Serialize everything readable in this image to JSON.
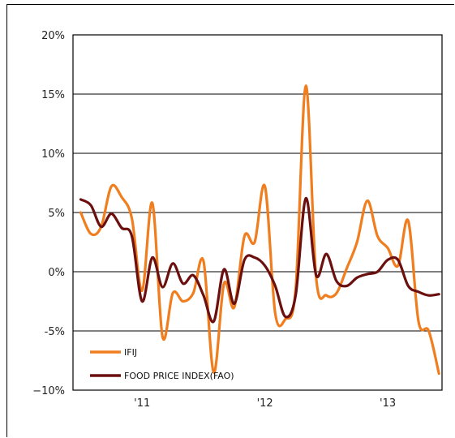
{
  "chart_data": {
    "type": "line",
    "title": "",
    "xlabel": "",
    "ylabel": "",
    "ylim": [
      -0.1,
      0.2
    ],
    "yticks": [
      {
        "value": 0.2,
        "label": "20%"
      },
      {
        "value": 0.15,
        "label": "15%"
      },
      {
        "value": 0.1,
        "label": "10%"
      },
      {
        "value": 0.05,
        "label": "5%"
      },
      {
        "value": 0.0,
        "label": "0%"
      },
      {
        "value": -0.05,
        "label": "-5%"
      },
      {
        "value": -0.1,
        "label": "−10%"
      }
    ],
    "xlim": [
      "2010-09",
      "2013-07"
    ],
    "xticks": [
      {
        "value": "2011-03",
        "label": "'11"
      },
      {
        "value": "2012-03",
        "label": "'12"
      },
      {
        "value": "2013-03",
        "label": "'13"
      }
    ],
    "grid": true,
    "legend": "bottom-left",
    "series": [
      {
        "name": "IFIJ",
        "color": "#f07d1e",
        "points": [
          {
            "x": "2010-09",
            "y": 0.05
          },
          {
            "x": "2010-10",
            "y": 0.032
          },
          {
            "x": "2010-11",
            "y": 0.038
          },
          {
            "x": "2010-12",
            "y": 0.072
          },
          {
            "x": "2011-01",
            "y": 0.063
          },
          {
            "x": "2011-02",
            "y": 0.045
          },
          {
            "x": "2011-03",
            "y": -0.016
          },
          {
            "x": "2011-04",
            "y": 0.058
          },
          {
            "x": "2011-05",
            "y": -0.055
          },
          {
            "x": "2011-06",
            "y": -0.018
          },
          {
            "x": "2011-07",
            "y": -0.025
          },
          {
            "x": "2011-08",
            "y": -0.018
          },
          {
            "x": "2011-09",
            "y": 0.009
          },
          {
            "x": "2011-10",
            "y": -0.085
          },
          {
            "x": "2011-11",
            "y": -0.01
          },
          {
            "x": "2011-12",
            "y": -0.03
          },
          {
            "x": "2012-01",
            "y": 0.03
          },
          {
            "x": "2012-02",
            "y": 0.025
          },
          {
            "x": "2012-03",
            "y": 0.072
          },
          {
            "x": "2012-04",
            "y": -0.035
          },
          {
            "x": "2012-05",
            "y": -0.04
          },
          {
            "x": "2012-06",
            "y": -0.015
          },
          {
            "x": "2012-07",
            "y": 0.157
          },
          {
            "x": "2012-08",
            "y": -0.005
          },
          {
            "x": "2012-09",
            "y": -0.02
          },
          {
            "x": "2012-10",
            "y": -0.018
          },
          {
            "x": "2012-11",
            "y": 0.003
          },
          {
            "x": "2012-12",
            "y": 0.025
          },
          {
            "x": "2013-01",
            "y": 0.06
          },
          {
            "x": "2013-02",
            "y": 0.03
          },
          {
            "x": "2013-03",
            "y": 0.02
          },
          {
            "x": "2013-04",
            "y": 0.005
          },
          {
            "x": "2013-05",
            "y": 0.043
          },
          {
            "x": "2013-06",
            "y": -0.042
          },
          {
            "x": "2013-07",
            "y": -0.05
          },
          {
            "x": "2013-08",
            "y": -0.086
          }
        ]
      },
      {
        "name": "FOOD PRICE INDEX(FAO)",
        "color": "#6b0f0f",
        "points": [
          {
            "x": "2010-09",
            "y": 0.061
          },
          {
            "x": "2010-10",
            "y": 0.056
          },
          {
            "x": "2010-11",
            "y": 0.038
          },
          {
            "x": "2010-12",
            "y": 0.049
          },
          {
            "x": "2011-01",
            "y": 0.037
          },
          {
            "x": "2011-02",
            "y": 0.03
          },
          {
            "x": "2011-03",
            "y": -0.025
          },
          {
            "x": "2011-04",
            "y": 0.012
          },
          {
            "x": "2011-05",
            "y": -0.013
          },
          {
            "x": "2011-06",
            "y": 0.007
          },
          {
            "x": "2011-07",
            "y": -0.01
          },
          {
            "x": "2011-08",
            "y": -0.003
          },
          {
            "x": "2011-09",
            "y": -0.02
          },
          {
            "x": "2011-10",
            "y": -0.042
          },
          {
            "x": "2011-11",
            "y": 0.002
          },
          {
            "x": "2011-12",
            "y": -0.027
          },
          {
            "x": "2012-01",
            "y": 0.01
          },
          {
            "x": "2012-02",
            "y": 0.012
          },
          {
            "x": "2012-03",
            "y": 0.005
          },
          {
            "x": "2012-04",
            "y": -0.012
          },
          {
            "x": "2012-05",
            "y": -0.038
          },
          {
            "x": "2012-06",
            "y": -0.02
          },
          {
            "x": "2012-07",
            "y": 0.062
          },
          {
            "x": "2012-08",
            "y": -0.003
          },
          {
            "x": "2012-09",
            "y": 0.015
          },
          {
            "x": "2012-10",
            "y": -0.008
          },
          {
            "x": "2012-11",
            "y": -0.012
          },
          {
            "x": "2012-12",
            "y": -0.005
          },
          {
            "x": "2013-01",
            "y": -0.002
          },
          {
            "x": "2013-02",
            "y": 0.0
          },
          {
            "x": "2013-03",
            "y": 0.01
          },
          {
            "x": "2013-04",
            "y": 0.01
          },
          {
            "x": "2013-05",
            "y": -0.012
          },
          {
            "x": "2013-06",
            "y": -0.017
          },
          {
            "x": "2013-07",
            "y": -0.02
          },
          {
            "x": "2013-08",
            "y": -0.019
          }
        ]
      }
    ]
  }
}
